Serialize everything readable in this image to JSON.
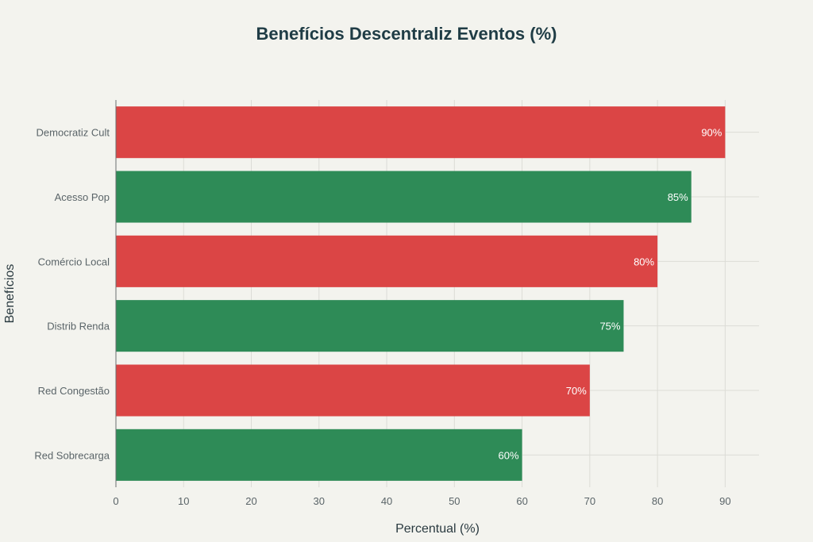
{
  "chart_data": {
    "type": "bar",
    "orientation": "horizontal",
    "title": "Benefícios Descentraliz Eventos (%)",
    "xlabel": "Percentual (%)",
    "ylabel": "Benefícios",
    "categories": [
      "Democratiz Cult",
      "Acesso Pop",
      "Comércio Local",
      "Distrib Renda",
      "Red Congestão",
      "Red Sobrecarga"
    ],
    "values": [
      90,
      85,
      80,
      75,
      70,
      60
    ],
    "data_labels": [
      "90%",
      "85%",
      "80%",
      "75%",
      "70%",
      "60%"
    ],
    "bar_colors": [
      "#db4545",
      "#2e8b57",
      "#db4545",
      "#2e8b57",
      "#db4545",
      "#2e8b57"
    ],
    "xlim": [
      0,
      95
    ],
    "xticks": [
      0,
      10,
      20,
      30,
      40,
      50,
      60,
      70,
      80,
      90
    ],
    "grid": true
  }
}
